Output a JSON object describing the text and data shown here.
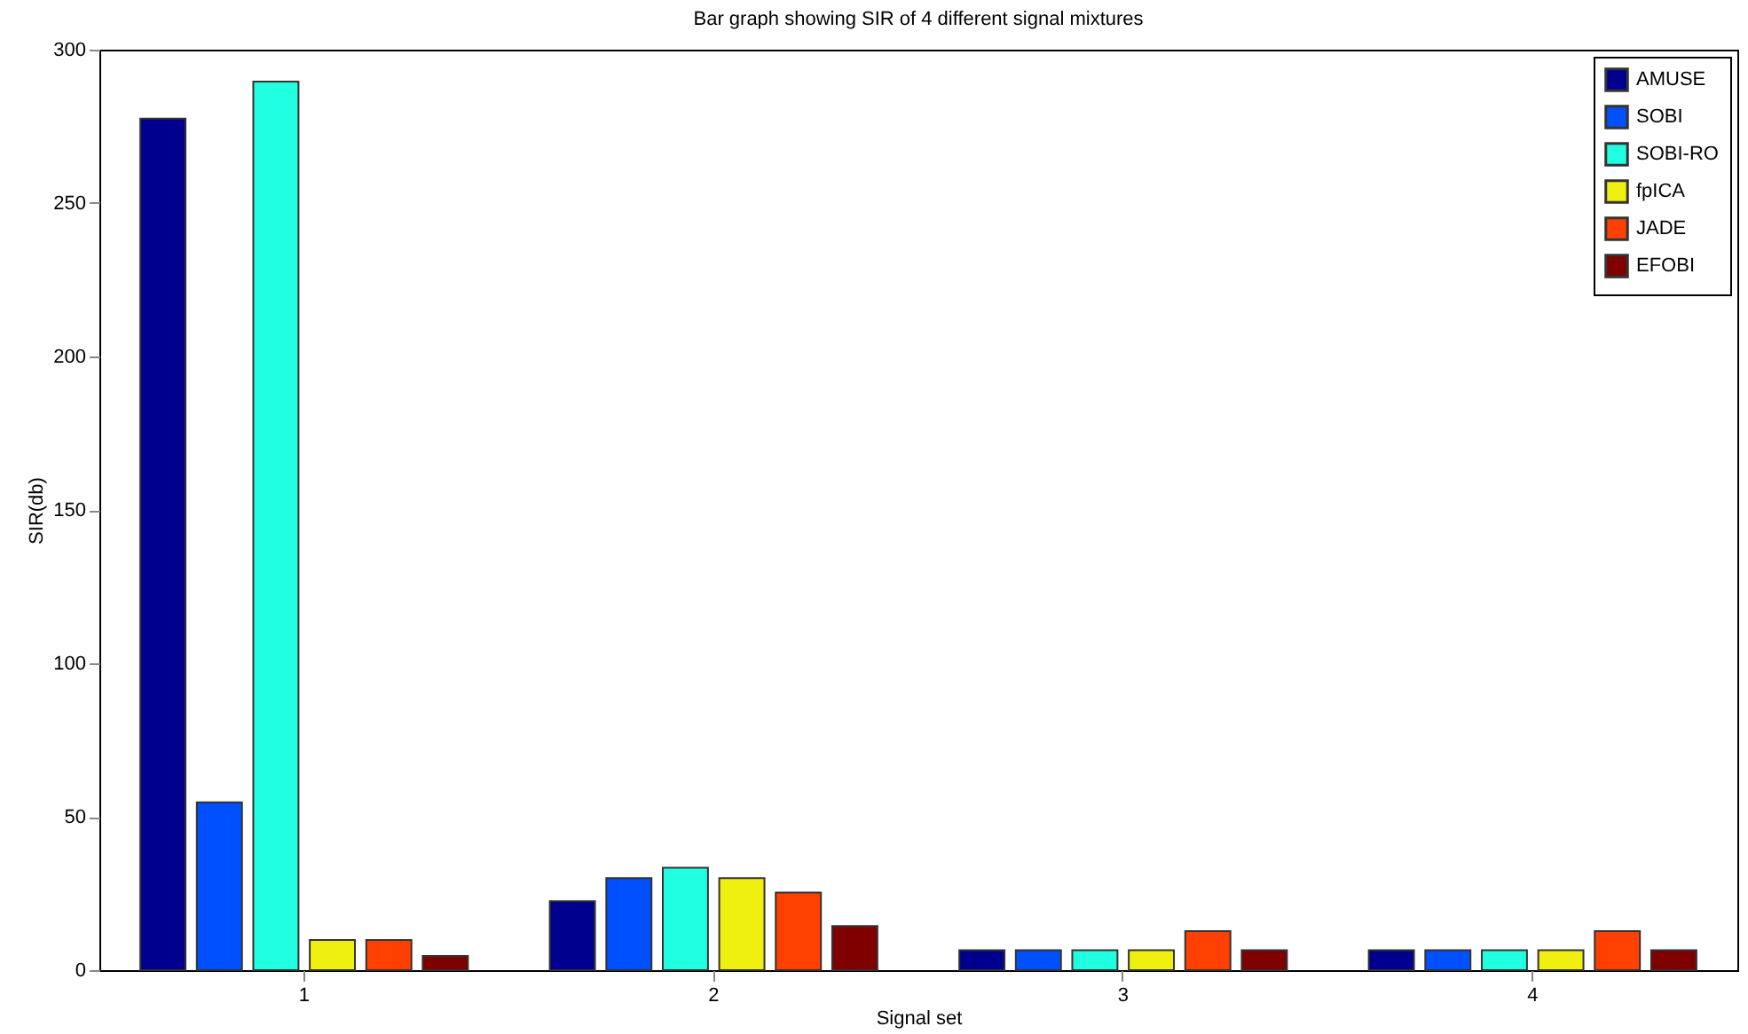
{
  "chart_data": {
    "type": "bar",
    "title": "Bar graph showing SIR of 4 different signal mixtures",
    "xlabel": "Signal set",
    "ylabel": "SIR(db)",
    "categories": [
      "1",
      "2",
      "3",
      "4"
    ],
    "ylim": [
      0,
      300
    ],
    "yticks": [
      0,
      50,
      100,
      150,
      200,
      250,
      300
    ],
    "legend": "top right",
    "series": [
      {
        "name": "AMUSE",
        "color": "#00008f",
        "values": [
          277.5,
          22.5,
          6.5,
          6.5
        ]
      },
      {
        "name": "SOBI",
        "color": "#0050ff",
        "values": [
          54.7,
          30,
          6.5,
          6.5
        ]
      },
      {
        "name": "SOBI-RO",
        "color": "#20ffdf",
        "values": [
          289.6,
          33.4,
          6.5,
          6.5
        ]
      },
      {
        "name": "fpICA",
        "color": "#f0f010",
        "values": [
          9.8,
          30,
          6.5,
          6.5
        ]
      },
      {
        "name": "JADE",
        "color": "#ff4000",
        "values": [
          9.8,
          25.3,
          12.7,
          12.7
        ]
      },
      {
        "name": "EFOBI",
        "color": "#800000",
        "values": [
          4.6,
          14.4,
          6.5,
          6.5
        ]
      }
    ]
  }
}
